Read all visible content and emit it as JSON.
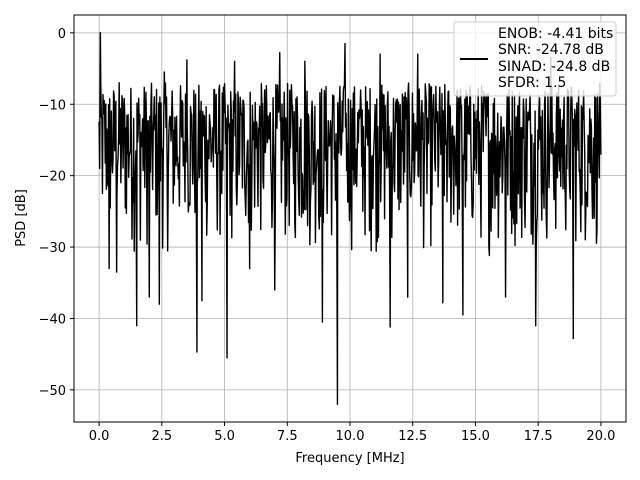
{
  "chart_data": {
    "type": "line",
    "xlabel": "Frequency [MHz]",
    "ylabel": "PSD [dB]",
    "xlim": [
      -1.0,
      21.0
    ],
    "ylim": [
      -54.5,
      2.5
    ],
    "x_ticks": [
      0.0,
      2.5,
      5.0,
      7.5,
      10.0,
      12.5,
      15.0,
      17.5,
      20.0
    ],
    "x_tick_labels": [
      "0.0",
      "2.5",
      "5.0",
      "7.5",
      "10.0",
      "12.5",
      "15.0",
      "17.5",
      "20.0"
    ],
    "y_ticks": [
      0,
      -10,
      -20,
      -30,
      -40,
      -50
    ],
    "y_tick_labels": [
      "0",
      "−10",
      "−20",
      "−30",
      "−40",
      "−50"
    ],
    "grid": true,
    "legend_position": "top-right",
    "legend_entries": [
      "ENOB: -4.41 bits",
      "SNR: -24.78 dB",
      "SINAD: -24.8 dB",
      "SFDR: 1.5"
    ],
    "line_color": "#000000",
    "series": [
      {
        "name": "",
        "x_range": [
          0.0,
          20.0
        ],
        "noise_floor_range": [
          -32.0,
          -7.0
        ],
        "peak": {
          "x": 0.05,
          "y": 0.0
        },
        "notable_points": [
          {
            "x": 0.0,
            "y": -12.5
          },
          {
            "x": 0.05,
            "y": 0.0
          },
          {
            "x": 0.4,
            "y": -33.0
          },
          {
            "x": 0.7,
            "y": -33.5
          },
          {
            "x": 0.8,
            "y": -7.0
          },
          {
            "x": 1.5,
            "y": -41.0
          },
          {
            "x": 2.0,
            "y": -37.0
          },
          {
            "x": 2.4,
            "y": -38.0
          },
          {
            "x": 2.6,
            "y": -5.5
          },
          {
            "x": 3.5,
            "y": -3.8
          },
          {
            "x": 3.9,
            "y": -44.7
          },
          {
            "x": 4.1,
            "y": -37.5
          },
          {
            "x": 5.1,
            "y": -45.5
          },
          {
            "x": 5.4,
            "y": -4.0
          },
          {
            "x": 6.0,
            "y": -33.0
          },
          {
            "x": 7.0,
            "y": -36.0
          },
          {
            "x": 7.2,
            "y": -2.8
          },
          {
            "x": 8.2,
            "y": -4.0
          },
          {
            "x": 8.9,
            "y": -40.5
          },
          {
            "x": 9.5,
            "y": -52.0
          },
          {
            "x": 9.8,
            "y": -1.5
          },
          {
            "x": 11.2,
            "y": -3.0
          },
          {
            "x": 11.6,
            "y": -41.2
          },
          {
            "x": 12.3,
            "y": -37.0
          },
          {
            "x": 12.7,
            "y": -3.0
          },
          {
            "x": 13.7,
            "y": -37.8
          },
          {
            "x": 14.5,
            "y": -39.5
          },
          {
            "x": 16.2,
            "y": -37.0
          },
          {
            "x": 17.4,
            "y": -41.0
          },
          {
            "x": 18.0,
            "y": -3.5
          },
          {
            "x": 18.9,
            "y": -42.8
          },
          {
            "x": 20.0,
            "y": -17.0
          }
        ]
      }
    ]
  }
}
